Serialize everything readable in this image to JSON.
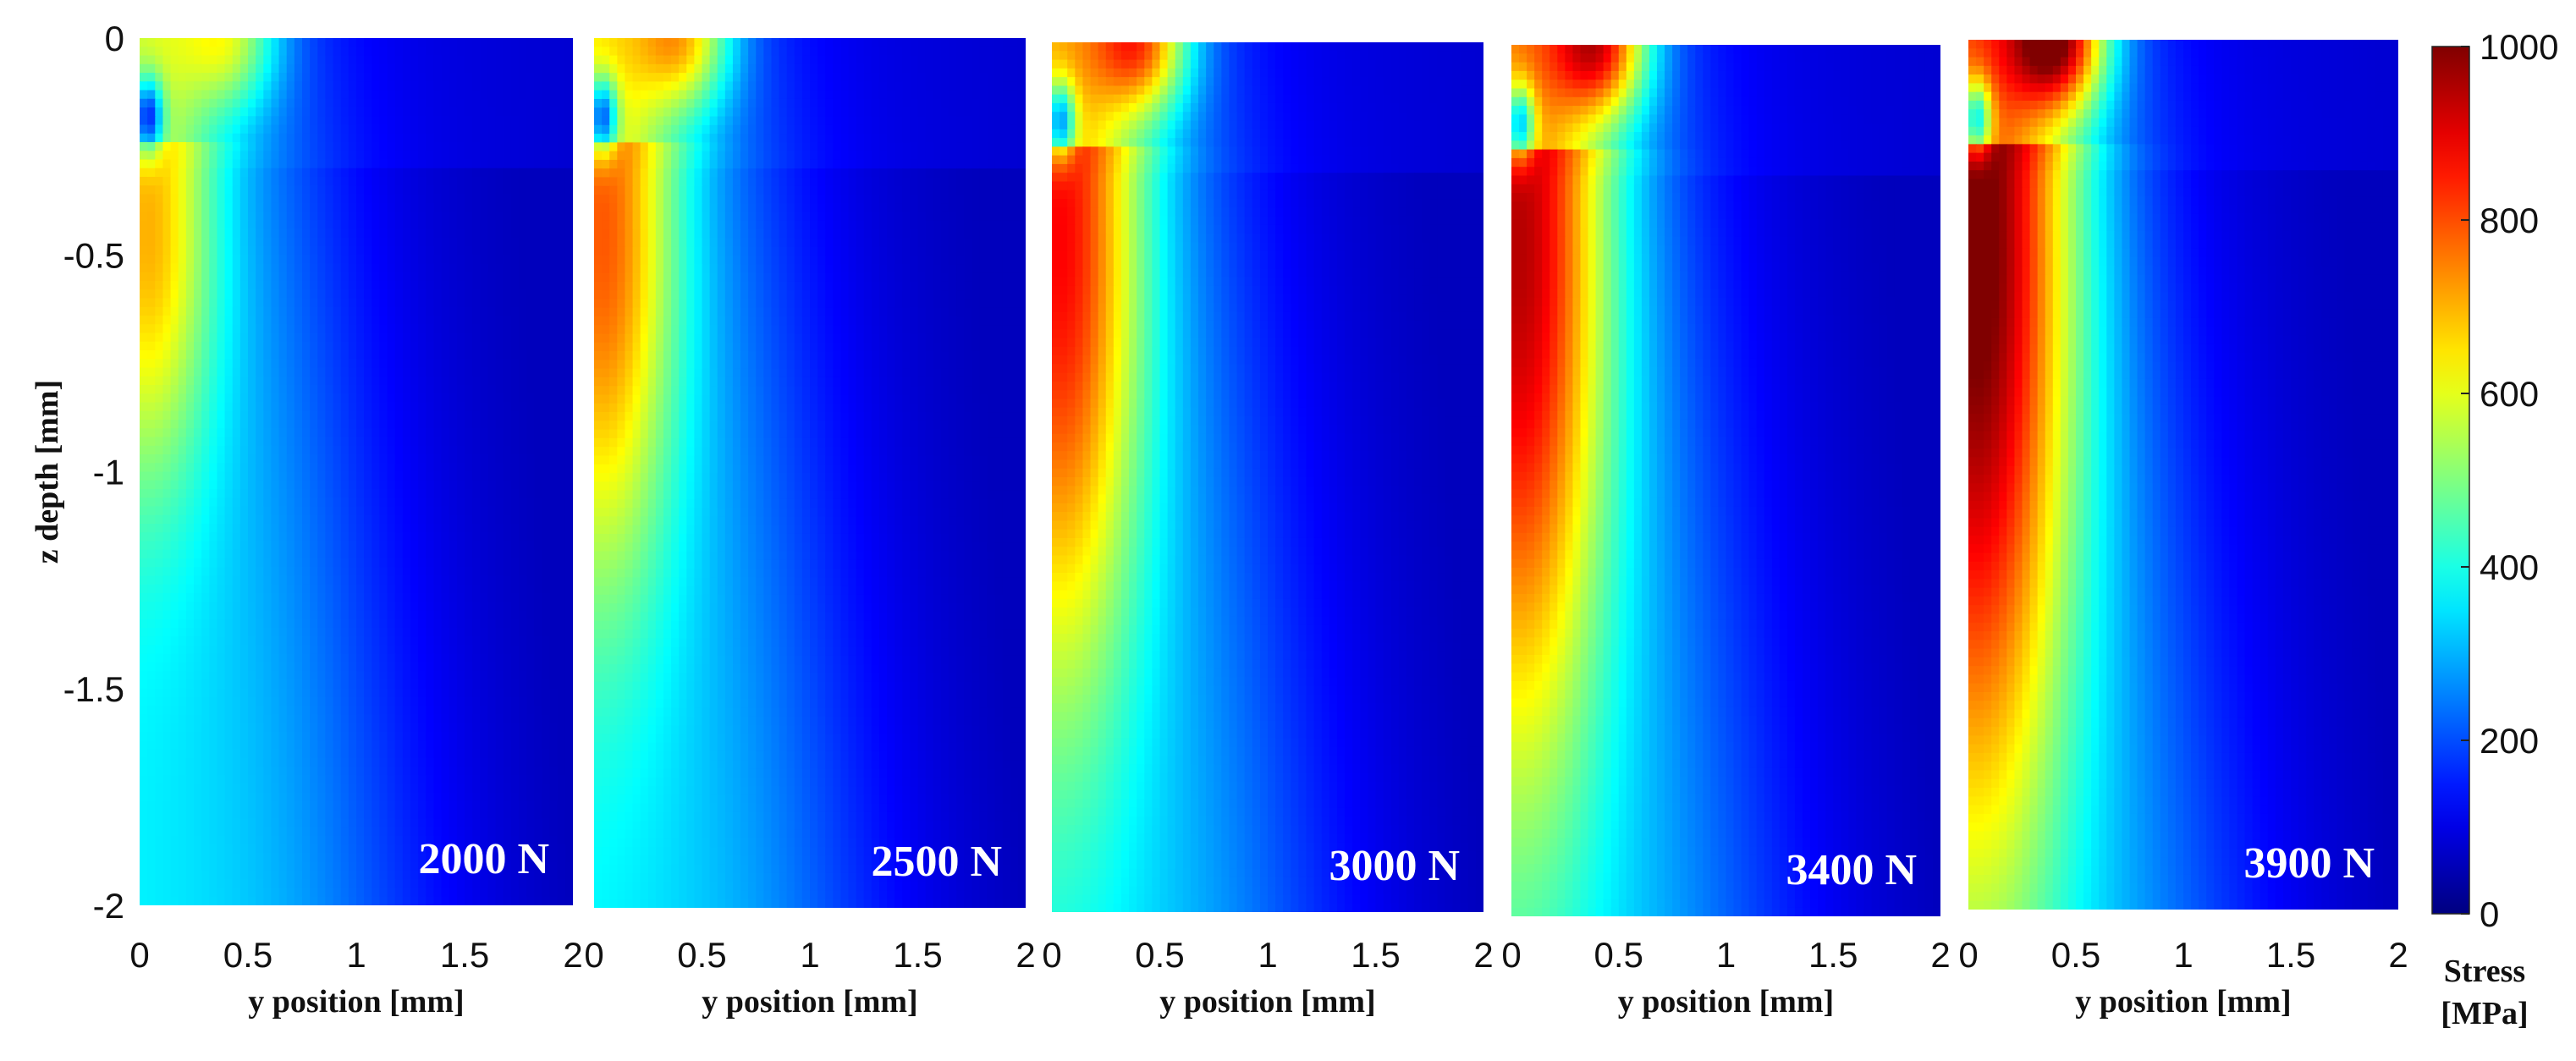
{
  "chart_data": {
    "type": "heatmap",
    "panels": [
      {
        "label": "2000 N",
        "load": 2000
      },
      {
        "label": "2500 N",
        "load": 2500
      },
      {
        "label": "3000 N",
        "load": 3000
      },
      {
        "label": "3400 N",
        "load": 3400
      },
      {
        "label": "3900 N",
        "load": 3900
      }
    ],
    "xlabel": "y position [mm]",
    "ylabel": "z depth [mm]",
    "xlim": [
      0,
      2
    ],
    "ylim": [
      -2,
      0
    ],
    "x_ticks": [
      "0",
      "0.5",
      "1",
      "1.5",
      "2"
    ],
    "y_ticks": [
      "0",
      "-0.5",
      "-1",
      "-1.5",
      "-2"
    ],
    "colorbar": {
      "label_line1": "Stress",
      "label_line2": "[MPa]",
      "range": [
        0,
        1000
      ],
      "ticks": [
        "1000",
        "800",
        "600",
        "400",
        "200",
        "0"
      ],
      "colormap": "jet"
    }
  }
}
